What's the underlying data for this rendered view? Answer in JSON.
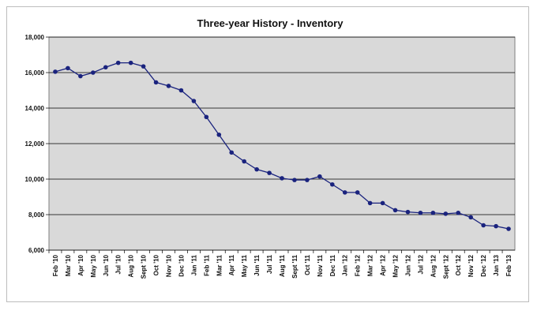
{
  "chart_data": {
    "type": "line",
    "title": "Three-year History - Inventory",
    "xlabel": "",
    "ylabel": "",
    "ylim": [
      6000,
      18000
    ],
    "yticks": [
      6000,
      8000,
      10000,
      12000,
      14000,
      16000,
      18000
    ],
    "ytick_labels": [
      "6,000",
      "8,000",
      "10,000",
      "12,000",
      "14,000",
      "16,000",
      "18,000"
    ],
    "grid": true,
    "legend": "none",
    "colors": {
      "line": "#1a237e",
      "plot_bg": "#d9d9d9",
      "grid": "#000000"
    },
    "categories": [
      "Feb '10",
      "Mar '10",
      "Apr '10",
      "May '10",
      "Jun '10",
      "Jul '10",
      "Aug '10",
      "Sept '10",
      "Oct '10",
      "Nov '10",
      "Dec '10",
      "Jan '11",
      "Feb '11",
      "Mar '11",
      "Apr '11",
      "May '11",
      "Jun '11",
      "Jul '11",
      "Aug '11",
      "Sept '11",
      "Oct '11",
      "Nov '11",
      "Dec '11",
      "Jan '12",
      "Feb '12",
      "Mar '12",
      "Apr '12",
      "May '12",
      "Jun '12",
      "Jul '12",
      "Aug '12",
      "Sept '12",
      "Oct '12",
      "Nov '12",
      "Dec '12",
      "Jan '13",
      "Feb '13"
    ],
    "series": [
      {
        "values": [
          16050,
          16250,
          15800,
          16000,
          16300,
          16550,
          16550,
          16350,
          15450,
          15250,
          15000,
          14400,
          13500,
          12500,
          11500,
          11000,
          10550,
          10350,
          10050,
          9950,
          9950,
          10150,
          9700,
          9250,
          9250,
          8650,
          8650,
          8250,
          8150,
          8100,
          8100,
          8050,
          8100,
          7850,
          7400,
          7350,
          7200
        ]
      }
    ]
  }
}
